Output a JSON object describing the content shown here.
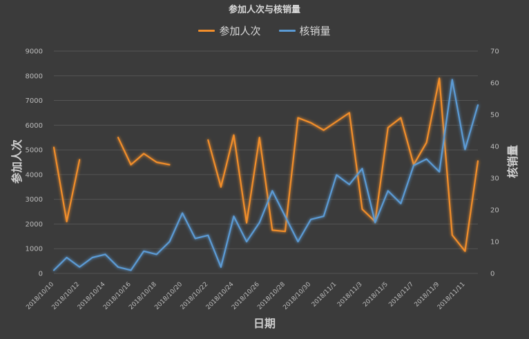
{
  "chart_data": {
    "type": "line",
    "title": "参加人次与核销量",
    "xlabel": "日期",
    "ylabel": "参加人次",
    "y2label": "核销量",
    "legend_position": "top-center",
    "grid": true,
    "ylim": [
      0,
      9000
    ],
    "y_ticks": [
      0,
      1000,
      2000,
      3000,
      4000,
      5000,
      6000,
      7000,
      8000,
      9000
    ],
    "y2lim": [
      0,
      70
    ],
    "y2_ticks": [
      0,
      10,
      20,
      30,
      40,
      50,
      60,
      70
    ],
    "x": [
      "2018/10/10",
      "2018/10/11",
      "2018/10/12",
      "2018/10/13",
      "2018/10/14",
      "2018/10/15",
      "2018/10/16",
      "2018/10/17",
      "2018/10/18",
      "2018/10/19",
      "2018/10/20",
      "2018/10/21",
      "2018/10/22",
      "2018/10/23",
      "2018/10/24",
      "2018/10/25",
      "2018/10/26",
      "2018/10/27",
      "2018/10/28",
      "2018/10/29",
      "2018/10/30",
      "2018/10/31",
      "2018/11/1",
      "2018/11/2",
      "2018/11/3",
      "2018/11/4",
      "2018/11/5",
      "2018/11/6",
      "2018/11/7",
      "2018/11/8",
      "2018/11/9",
      "2018/11/10",
      "2018/11/11",
      "2018/11/12"
    ],
    "x_tick_labels": [
      "2018/10/10",
      "2018/10/12",
      "2018/10/14",
      "2018/10/16",
      "2018/10/18",
      "2018/10/20",
      "2018/10/22",
      "2018/10/24",
      "2018/10/26",
      "2018/10/28",
      "2018/10/30",
      "2018/11/1",
      "2018/11/3",
      "2018/11/5",
      "2018/11/7",
      "2018/11/9",
      "2018/11/11"
    ],
    "series": [
      {
        "name": "参加人次",
        "axis": "left",
        "color": "#f28e2b",
        "values": [
          5100,
          2100,
          4600,
          null,
          null,
          5500,
          4400,
          4850,
          4500,
          4400,
          null,
          null,
          5400,
          3500,
          5600,
          2050,
          5500,
          1750,
          1700,
          6300,
          6100,
          5800,
          6150,
          6500,
          2600,
          2100,
          5900,
          6300,
          4400,
          5300,
          7900,
          1550,
          900,
          4550
        ]
      },
      {
        "name": "核销量",
        "axis": "right",
        "color": "#5b9bd5",
        "values": [
          1,
          5,
          2,
          5,
          6,
          2,
          1,
          7,
          6,
          10,
          19,
          11,
          12,
          2,
          18,
          10,
          16,
          26,
          18,
          10,
          17,
          18,
          31,
          28,
          33,
          16,
          26,
          22,
          34,
          36,
          32,
          61,
          39,
          53
        ]
      }
    ]
  }
}
